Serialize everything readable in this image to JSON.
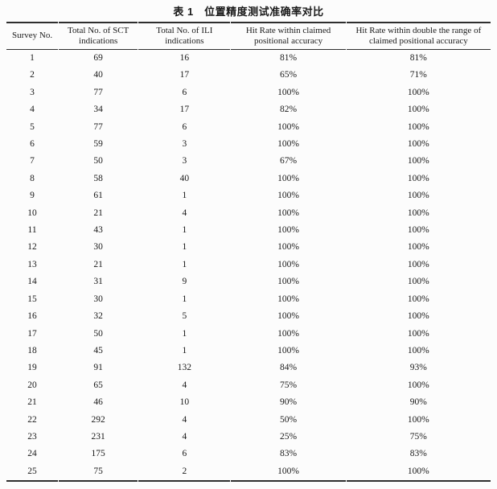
{
  "title": "表 1　位置精度测试准确率对比",
  "table": {
    "headers": [
      "Survey No.",
      "Total No. of SCT indications",
      "Total No. of ILI indications",
      "Hit Rate within claimed positional accuracy",
      "Hit Rate within double the range of claimed positional accuracy"
    ],
    "rows": [
      [
        "1",
        "69",
        "16",
        "81%",
        "81%"
      ],
      [
        "2",
        "40",
        "17",
        "65%",
        "71%"
      ],
      [
        "3",
        "77",
        "6",
        "100%",
        "100%"
      ],
      [
        "4",
        "34",
        "17",
        "82%",
        "100%"
      ],
      [
        "5",
        "77",
        "6",
        "100%",
        "100%"
      ],
      [
        "6",
        "59",
        "3",
        "100%",
        "100%"
      ],
      [
        "7",
        "50",
        "3",
        "67%",
        "100%"
      ],
      [
        "8",
        "58",
        "40",
        "100%",
        "100%"
      ],
      [
        "9",
        "61",
        "1",
        "100%",
        "100%"
      ],
      [
        "10",
        "21",
        "4",
        "100%",
        "100%"
      ],
      [
        "11",
        "43",
        "1",
        "100%",
        "100%"
      ],
      [
        "12",
        "30",
        "1",
        "100%",
        "100%"
      ],
      [
        "13",
        "21",
        "1",
        "100%",
        "100%"
      ],
      [
        "14",
        "31",
        "9",
        "100%",
        "100%"
      ],
      [
        "15",
        "30",
        "1",
        "100%",
        "100%"
      ],
      [
        "16",
        "32",
        "5",
        "100%",
        "100%"
      ],
      [
        "17",
        "50",
        "1",
        "100%",
        "100%"
      ],
      [
        "18",
        "45",
        "1",
        "100%",
        "100%"
      ],
      [
        "19",
        "91",
        "132",
        "84%",
        "93%"
      ],
      [
        "20",
        "65",
        "4",
        "75%",
        "100%"
      ],
      [
        "21",
        "46",
        "10",
        "90%",
        "90%"
      ],
      [
        "22",
        "292",
        "4",
        "50%",
        "100%"
      ],
      [
        "23",
        "231",
        "4",
        "25%",
        "75%"
      ],
      [
        "24",
        "175",
        "6",
        "83%",
        "83%"
      ],
      [
        "25",
        "75",
        "2",
        "100%",
        "100%"
      ]
    ]
  }
}
